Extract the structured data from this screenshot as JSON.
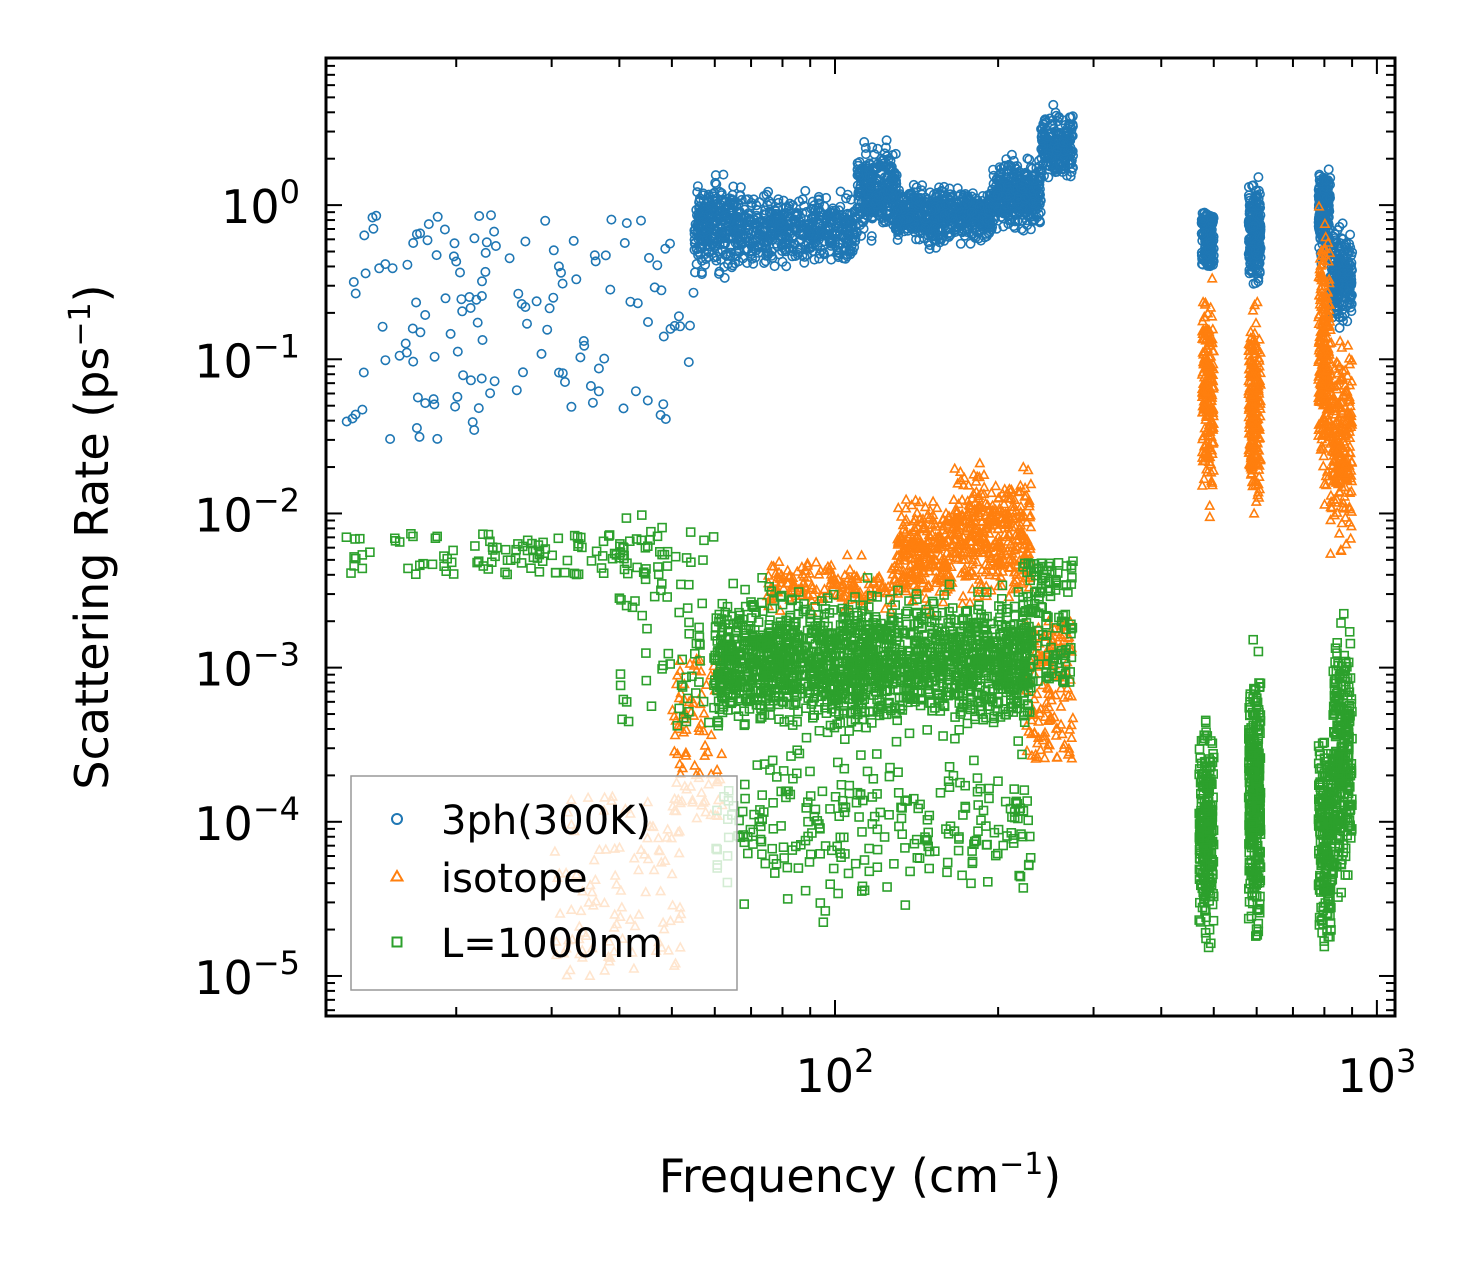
{
  "chart_data": {
    "type": "scatter",
    "title": "",
    "xlabel": "Frequency (cm⁻¹)",
    "xlabel_base": "Frequency (cm",
    "xlabel_sup": "−1",
    "xlabel_close": ")",
    "ylabel": "Scattering Rate (ps⁻¹)",
    "ylabel_base": "Scattering Rate (ps",
    "ylabel_sup": "−1",
    "ylabel_close": ")",
    "x_scale": "log",
    "y_scale": "log",
    "xlim": [
      11.5,
      1080
    ],
    "ylim": [
      5.5e-06,
      9.0
    ],
    "x_major_ticks": [
      {
        "value": 100,
        "base": "10",
        "exp": "2"
      },
      {
        "value": 1000,
        "base": "10",
        "exp": "3"
      }
    ],
    "y_major_ticks": [
      {
        "value": 1,
        "base": "10",
        "exp": "0"
      },
      {
        "value": 0.1,
        "base": "10",
        "exp": "−1"
      },
      {
        "value": 0.01,
        "base": "10",
        "exp": "−2"
      },
      {
        "value": 0.001,
        "base": "10",
        "exp": "−3"
      },
      {
        "value": 0.0001,
        "base": "10",
        "exp": "−4"
      },
      {
        "value": 1e-05,
        "base": "10",
        "exp": "−5"
      }
    ],
    "legend_position": "lower-left",
    "series": [
      {
        "name": "3ph(300K)",
        "marker": "circle",
        "color": "#1f77b4",
        "clusters": [
          {
            "xmin": 12.5,
            "xmax": 55,
            "ymin": 0.03,
            "ymax": 0.9,
            "n": 140
          },
          {
            "xmin": 55,
            "xmax": 65,
            "ymin": 0.3,
            "ymax": 1.8,
            "n": 260
          },
          {
            "xmin": 65,
            "xmax": 110,
            "ymin": 0.35,
            "ymax": 1.4,
            "n": 520
          },
          {
            "xmin": 110,
            "xmax": 130,
            "ymin": 0.5,
            "ymax": 2.9,
            "n": 300
          },
          {
            "xmin": 130,
            "xmax": 195,
            "ymin": 0.5,
            "ymax": 1.5,
            "n": 560
          },
          {
            "xmin": 195,
            "xmax": 240,
            "ymin": 0.6,
            "ymax": 2.3,
            "n": 360
          },
          {
            "xmin": 240,
            "xmax": 275,
            "ymin": 1.2,
            "ymax": 4.8,
            "n": 220
          },
          {
            "xmin": 475,
            "xmax": 500,
            "ymin": 0.4,
            "ymax": 0.9,
            "n": 150
          },
          {
            "xmin": 580,
            "xmax": 610,
            "ymin": 0.25,
            "ymax": 1.8,
            "n": 220
          },
          {
            "xmin": 780,
            "xmax": 820,
            "ymin": 0.35,
            "ymax": 2.2,
            "n": 200
          },
          {
            "xmin": 820,
            "xmax": 900,
            "ymin": 0.13,
            "ymax": 0.9,
            "n": 220
          }
        ]
      },
      {
        "name": "isotope",
        "marker": "triangle",
        "color": "#ff7f0e",
        "clusters": [
          {
            "xmin": 30,
            "xmax": 52,
            "ymin": 1e-05,
            "ymax": 0.00015,
            "n": 110
          },
          {
            "xmin": 50,
            "xmax": 62,
            "ymin": 0.0001,
            "ymax": 0.0012,
            "n": 90
          },
          {
            "xmin": 75,
            "xmax": 130,
            "ymin": 0.002,
            "ymax": 0.006,
            "n": 160
          },
          {
            "xmin": 130,
            "xmax": 165,
            "ymin": 0.002,
            "ymax": 0.016,
            "n": 260
          },
          {
            "xmin": 165,
            "xmax": 230,
            "ymin": 0.002,
            "ymax": 0.025,
            "n": 380
          },
          {
            "xmin": 225,
            "xmax": 275,
            "ymin": 0.00025,
            "ymax": 0.002,
            "n": 140
          },
          {
            "xmin": 476,
            "xmax": 500,
            "ymin": 0.007,
            "ymax": 0.5,
            "n": 200
          },
          {
            "xmin": 580,
            "xmax": 610,
            "ymin": 0.007,
            "ymax": 0.3,
            "n": 260
          },
          {
            "xmin": 780,
            "xmax": 820,
            "ymin": 0.008,
            "ymax": 1.4,
            "n": 230
          },
          {
            "xmin": 820,
            "xmax": 900,
            "ymin": 0.004,
            "ymax": 0.2,
            "n": 220
          }
        ]
      },
      {
        "name": "L=1000nm",
        "marker": "square",
        "color": "#2ca02c",
        "clusters": [
          {
            "xmin": 12.5,
            "xmax": 50,
            "ymin": 0.004,
            "ymax": 0.0075,
            "n": 110
          },
          {
            "xmin": 40,
            "xmax": 60,
            "ymin": 0.0004,
            "ymax": 0.01,
            "n": 80
          },
          {
            "xmin": 60,
            "xmax": 230,
            "ymin": 0.0003,
            "ymax": 0.004,
            "n": 1800
          },
          {
            "xmin": 60,
            "xmax": 230,
            "ymin": 2e-05,
            "ymax": 0.0005,
            "n": 260
          },
          {
            "xmin": 220,
            "xmax": 275,
            "ymin": 0.0008,
            "ymax": 0.005,
            "n": 140
          },
          {
            "xmin": 470,
            "xmax": 500,
            "ymin": 1e-05,
            "ymax": 0.0008,
            "n": 260
          },
          {
            "xmin": 580,
            "xmax": 610,
            "ymin": 1e-05,
            "ymax": 0.002,
            "n": 320
          },
          {
            "xmin": 780,
            "xmax": 830,
            "ymin": 1e-05,
            "ymax": 0.0006,
            "n": 200
          },
          {
            "xmin": 830,
            "xmax": 900,
            "ymin": 2e-05,
            "ymax": 0.0035,
            "n": 280
          }
        ]
      }
    ]
  }
}
